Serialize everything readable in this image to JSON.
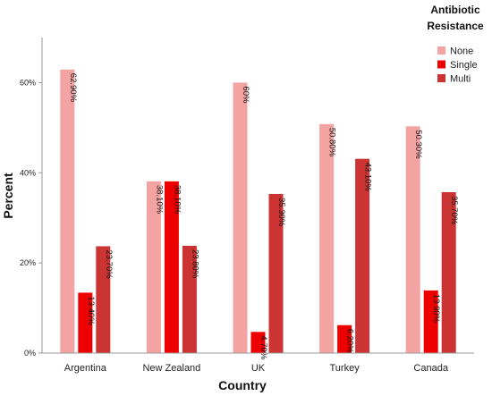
{
  "chart_data": {
    "type": "bar",
    "categories": [
      "Argentina",
      "New Zealand",
      "UK",
      "Turkey",
      "Canada"
    ],
    "series": [
      {
        "name": "None",
        "color": "#f4a3a3",
        "values": [
          62.9,
          38.1,
          60,
          50.8,
          50.3
        ],
        "labels": [
          "62.90%",
          "38.10%",
          "60%",
          "50.80%",
          "50.30%"
        ]
      },
      {
        "name": "Single",
        "color": "#ee0000",
        "values": [
          13.4,
          38.1,
          4.7,
          6.2,
          13.9
        ],
        "labels": [
          "13.40%",
          "38.10%",
          "4.70%",
          "6.20%",
          "13.90%"
        ]
      },
      {
        "name": "Multi",
        "color": "#cc3333",
        "values": [
          23.7,
          23.8,
          35.3,
          43.1,
          35.7
        ],
        "labels": [
          "23.70%",
          "23.80%",
          "35.30%",
          "43.10%",
          "35.70%"
        ]
      }
    ],
    "xlabel": "Country",
    "ylabel": "Percent",
    "ylim": [
      0,
      70
    ],
    "yticks": [
      0,
      20,
      40,
      60
    ],
    "ytick_labels": [
      "0%",
      "20%",
      "40%",
      "60%"
    ],
    "legend_title_lines": [
      "Antibiotic",
      "Resistance"
    ],
    "legend_position": "top-right",
    "grid": false
  }
}
